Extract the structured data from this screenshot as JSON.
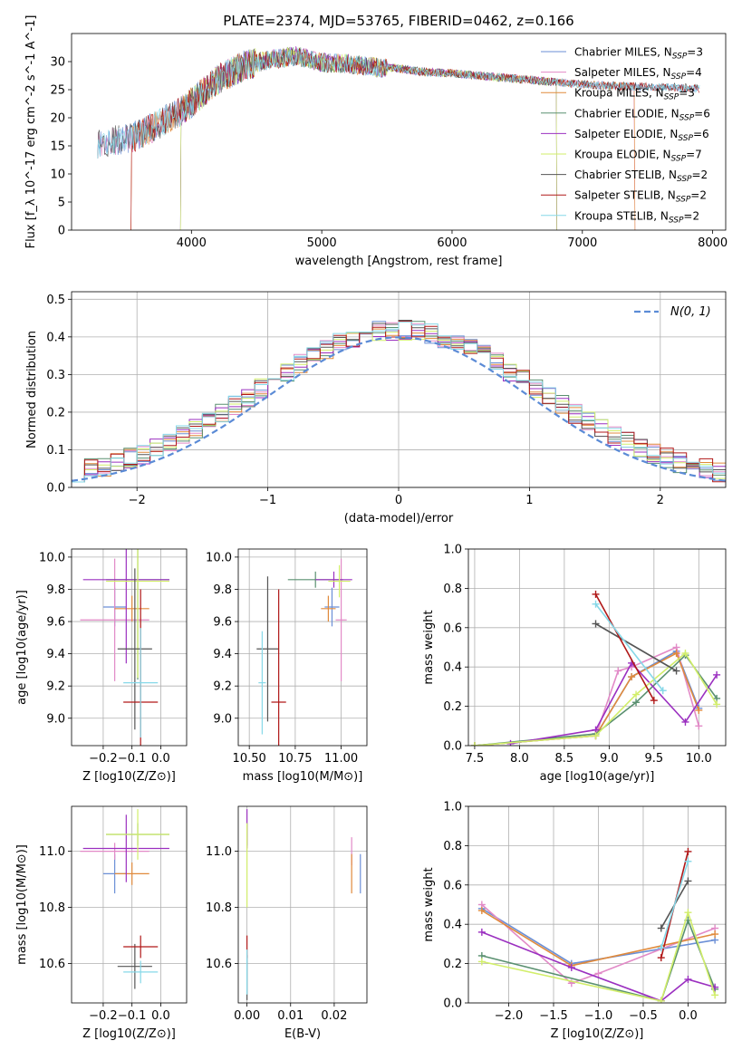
{
  "colors": {
    "chabrier_miles": "#6b8fd6",
    "salpeter_miles": "#e28ac7",
    "kroupa_miles": "#e08a3c",
    "chabrier_elodie": "#5a9070",
    "salpeter_elodie": "#9b30c0",
    "kroupa_elodie": "#d2ee6a",
    "chabrier_stelib": "#555555",
    "salpeter_stelib": "#b01818",
    "kroupa_stelib": "#86d8e8",
    "normal_curve": "#5b8bd6",
    "grid": "#b0b0b0"
  },
  "chart_data": [
    {
      "id": "spectrum",
      "type": "line",
      "title": "PLATE=2374, MJD=53765, FIBERID=0462, z=0.166",
      "xlabel": "wavelength [Angstrom, rest frame]",
      "ylabel": "Flux [f_λ 10^-17 erg cm^-2 s^-1 A^-1]",
      "xlim": [
        3080,
        8100
      ],
      "ylim": [
        0,
        35
      ],
      "xticks": [
        4000,
        5000,
        6000,
        7000,
        8000
      ],
      "yticks": [
        0,
        5,
        10,
        15,
        20,
        25,
        30
      ],
      "grid": false,
      "legend_position": "right",
      "legend": [
        {
          "label": "Chabrier MILES, N",
          "sub": "SSP",
          "eq": "=3",
          "color_key": "chabrier_miles"
        },
        {
          "label": "Salpeter MILES, N",
          "sub": "SSP",
          "eq": "=4",
          "color_key": "salpeter_miles"
        },
        {
          "label": "Kroupa MILES, N",
          "sub": "SSP",
          "eq": "=3",
          "color_key": "kroupa_miles"
        },
        {
          "label": "Chabrier ELODIE, N",
          "sub": "SSP",
          "eq": "=6",
          "color_key": "chabrier_elodie"
        },
        {
          "label": "Salpeter ELODIE, N",
          "sub": "SSP",
          "eq": "=6",
          "color_key": "salpeter_elodie"
        },
        {
          "label": "Kroupa ELODIE, N",
          "sub": "SSP",
          "eq": "=7",
          "color_key": "kroupa_elodie"
        },
        {
          "label": "Chabrier STELIB, N",
          "sub": "SSP",
          "eq": "=2",
          "color_key": "chabrier_stelib"
        },
        {
          "label": "Salpeter STELIB, N",
          "sub": "SSP",
          "eq": "=2",
          "color_key": "salpeter_stelib"
        },
        {
          "label": "Kroupa STELIB, N",
          "sub": "SSP",
          "eq": "=2",
          "color_key": "kroupa_stelib"
        }
      ],
      "spectrum_envelope": [
        [
          3280,
          15.8
        ],
        [
          3400,
          16.2
        ],
        [
          3550,
          16.8
        ],
        [
          3700,
          18.5
        ],
        [
          3850,
          20.5
        ],
        [
          3950,
          22.0
        ],
        [
          4050,
          24.0
        ],
        [
          4200,
          27.0
        ],
        [
          4400,
          29.5
        ],
        [
          4600,
          30.5
        ],
        [
          4800,
          31.2
        ],
        [
          5000,
          30.0
        ],
        [
          5200,
          29.8
        ],
        [
          5400,
          29.2
        ],
        [
          5600,
          28.8
        ],
        [
          5800,
          28.2
        ],
        [
          6000,
          28.0
        ],
        [
          6200,
          27.6
        ],
        [
          6400,
          27.2
        ],
        [
          6600,
          26.8
        ],
        [
          6800,
          26.4
        ],
        [
          7000,
          26.0
        ],
        [
          7200,
          25.8
        ],
        [
          7400,
          25.6
        ],
        [
          7600,
          25.6
        ],
        [
          7800,
          25.4
        ],
        [
          7900,
          25.2
        ]
      ],
      "model_starts": [
        {
          "color_key": "kroupa_miles",
          "x": 3540
        },
        {
          "color_key": "salpeter_stelib",
          "x": 3540
        },
        {
          "color_key": "kroupa_elodie",
          "x": 3920
        },
        {
          "color_key": "salpeter_elodie",
          "x": 3920
        },
        {
          "color_key": "chabrier_elodie",
          "x": 3920
        }
      ],
      "model_ends": [
        {
          "color_key": "kroupa_elodie",
          "x": 6800
        },
        {
          "color_key": "salpeter_elodie",
          "x": 6800
        },
        {
          "color_key": "chabrier_elodie",
          "x": 6800
        },
        {
          "color_key": "salpeter_miles",
          "x": 7400
        },
        {
          "color_key": "kroupa_miles",
          "x": 7400
        }
      ]
    },
    {
      "id": "residuals",
      "type": "histogram",
      "xlabel": "(data-model)/error",
      "ylabel": "Normed distribution",
      "xlim": [
        -2.5,
        2.5
      ],
      "ylim": [
        0,
        0.52
      ],
      "xticks": [
        -2,
        -1,
        0,
        1,
        2
      ],
      "yticks": [
        0.0,
        0.1,
        0.2,
        0.3,
        0.4,
        0.5
      ],
      "grid": true,
      "bin_width": 0.1,
      "legend_position": "top-right",
      "legend": [
        {
          "label": "N(0, 1)",
          "style": "dashed",
          "color_key": "normal_curve"
        }
      ],
      "normal": {
        "mean": 0,
        "sigma": 1
      }
    },
    {
      "id": "age_vs_Z",
      "type": "errorbar",
      "xlabel": "Z [log10(Z/Z⊙)]",
      "ylabel": "age  [log10(age/yr)]",
      "xlim": [
        -0.31,
        0.09
      ],
      "ylim": [
        8.83,
        10.05
      ],
      "xticks": [
        -0.2,
        -0.1,
        0.0
      ],
      "xtick_labels": [
        "−0.2",
        "−0.1",
        "0.0"
      ],
      "yticks": [
        9.0,
        9.2,
        9.4,
        9.6,
        9.8,
        10.0
      ],
      "grid": true,
      "points": [
        {
          "color_key": "chabrier_miles",
          "x": -0.16,
          "xerr": 0.04,
          "y": 9.69,
          "yerr": 0.12
        },
        {
          "color_key": "salpeter_miles",
          "x": -0.16,
          "xerr": 0.12,
          "y": 9.61,
          "yerr": 0.38
        },
        {
          "color_key": "kroupa_miles",
          "x": -0.1,
          "xerr": 0.06,
          "y": 9.68,
          "yerr": 0.08
        },
        {
          "color_key": "chabrier_elodie",
          "x": -0.08,
          "xerr": 0.11,
          "y": 9.86,
          "yerr": 0.62
        },
        {
          "color_key": "salpeter_elodie",
          "x": -0.12,
          "xerr": 0.15,
          "y": 9.86,
          "yerr": 0.52
        },
        {
          "color_key": "kroupa_elodie",
          "x": -0.08,
          "xerr": 0.11,
          "y": 9.85,
          "yerr": 0.6
        },
        {
          "color_key": "chabrier_stelib",
          "x": -0.09,
          "xerr": 0.06,
          "y": 9.43,
          "yerr": 0.5
        },
        {
          "color_key": "salpeter_stelib",
          "x": -0.07,
          "xerr": 0.06,
          "y": 9.1,
          "yerr": 0.7
        },
        {
          "color_key": "kroupa_stelib",
          "x": -0.07,
          "xerr": 0.06,
          "y": 9.22,
          "yerr": 0.34
        }
      ]
    },
    {
      "id": "age_vs_mass",
      "type": "errorbar",
      "xlabel": "mass [log10(M/M⊙)]",
      "xlim": [
        10.44,
        11.14
      ],
      "ylim": [
        8.83,
        10.05
      ],
      "xticks": [
        10.5,
        10.75,
        11.0
      ],
      "xtick_labels": [
        "10.50",
        "10.75",
        "11.00"
      ],
      "yticks": [
        9.0,
        9.2,
        9.4,
        9.6,
        9.8,
        10.0
      ],
      "grid": true,
      "points": [
        {
          "color_key": "chabrier_miles",
          "x": 10.95,
          "xerr": 0.04,
          "y": 9.69,
          "yerr": 0.12
        },
        {
          "color_key": "salpeter_miles",
          "x": 11.0,
          "xerr": 0.03,
          "y": 9.61,
          "yerr": 0.38
        },
        {
          "color_key": "kroupa_miles",
          "x": 10.93,
          "xerr": 0.04,
          "y": 9.68,
          "yerr": 0.08
        },
        {
          "color_key": "chabrier_elodie",
          "x": 10.86,
          "xerr": 0.15,
          "y": 9.86,
          "yerr": 0.05
        },
        {
          "color_key": "salpeter_elodie",
          "x": 10.96,
          "xerr": 0.1,
          "y": 9.86,
          "yerr": 0.05
        },
        {
          "color_key": "kroupa_elodie",
          "x": 10.99,
          "xerr": 0.06,
          "y": 9.85,
          "yerr": 0.1
        },
        {
          "color_key": "chabrier_stelib",
          "x": 10.6,
          "xerr": 0.06,
          "y": 9.43,
          "yerr": 0.45
        },
        {
          "color_key": "salpeter_stelib",
          "x": 10.66,
          "xerr": 0.04,
          "y": 9.1,
          "yerr": 0.7
        },
        {
          "color_key": "kroupa_stelib",
          "x": 10.57,
          "xerr": 0.02,
          "y": 9.22,
          "yerr": 0.32
        }
      ]
    },
    {
      "id": "age_weights",
      "type": "line",
      "xlabel": "age  [log10(age/yr)]",
      "ylabel": "mass weight",
      "xlim": [
        7.43,
        10.3
      ],
      "ylim": [
        0,
        1
      ],
      "xticks": [
        7.5,
        8.0,
        8.5,
        9.0,
        9.5,
        10.0
      ],
      "yticks": [
        0.0,
        0.2,
        0.4,
        0.6,
        0.8,
        1.0
      ],
      "grid": true,
      "series": [
        {
          "color_key": "chabrier_miles",
          "x": [
            7.5,
            8.85,
            9.25,
            9.75,
            10.0
          ],
          "y": [
            0,
            0.05,
            0.35,
            0.48,
            0.19
          ]
        },
        {
          "color_key": "salpeter_miles",
          "x": [
            7.5,
            8.85,
            9.1,
            9.25,
            9.75,
            10.0
          ],
          "y": [
            0,
            0.05,
            0.38,
            0.4,
            0.5,
            0.1
          ]
        },
        {
          "color_key": "kroupa_miles",
          "x": [
            7.5,
            8.85,
            9.25,
            9.75,
            10.0
          ],
          "y": [
            0,
            0.05,
            0.35,
            0.47,
            0.18
          ]
        },
        {
          "color_key": "chabrier_elodie",
          "x": [
            7.5,
            8.85,
            9.3,
            9.85,
            10.2
          ],
          "y": [
            0,
            0.06,
            0.22,
            0.46,
            0.24
          ]
        },
        {
          "color_key": "salpeter_elodie",
          "x": [
            7.9,
            8.85,
            9.25,
            9.85,
            10.2
          ],
          "y": [
            0.01,
            0.08,
            0.42,
            0.12,
            0.36
          ]
        },
        {
          "color_key": "kroupa_elodie",
          "x": [
            7.5,
            8.85,
            9.3,
            9.85,
            10.2
          ],
          "y": [
            0,
            0.05,
            0.26,
            0.47,
            0.21
          ]
        },
        {
          "color_key": "chabrier_stelib",
          "x": [
            8.85,
            9.75
          ],
          "y": [
            0.62,
            0.38
          ]
        },
        {
          "color_key": "salpeter_stelib",
          "x": [
            8.85,
            9.5
          ],
          "y": [
            0.77,
            0.23
          ]
        },
        {
          "color_key": "kroupa_stelib",
          "x": [
            8.85,
            9.6
          ],
          "y": [
            0.72,
            0.28
          ]
        }
      ]
    },
    {
      "id": "mass_vs_Z",
      "type": "errorbar",
      "xlabel": "Z [log10(Z/Z⊙)]",
      "ylabel": "mass [log10(M/M⊙)]",
      "xlim": [
        -0.31,
        0.09
      ],
      "ylim": [
        10.46,
        11.16
      ],
      "xticks": [
        -0.2,
        -0.1,
        0.0
      ],
      "xtick_labels": [
        "−0.2",
        "−0.1",
        "0.0"
      ],
      "yticks": [
        10.6,
        10.8,
        11.0
      ],
      "grid": true,
      "points": [
        {
          "color_key": "chabrier_miles",
          "x": -0.16,
          "xerr": 0.04,
          "y": 10.92,
          "yerr": 0.07
        },
        {
          "color_key": "salpeter_miles",
          "x": -0.16,
          "xerr": 0.12,
          "y": 11.0,
          "yerr": 0.03
        },
        {
          "color_key": "kroupa_miles",
          "x": -0.1,
          "xerr": 0.06,
          "y": 10.92,
          "yerr": 0.04
        },
        {
          "color_key": "chabrier_elodie",
          "x": -0.08,
          "xerr": 0.11,
          "y": 11.06,
          "yerr": 0.04
        },
        {
          "color_key": "salpeter_elodie",
          "x": -0.12,
          "xerr": 0.15,
          "y": 11.01,
          "yerr": 0.12
        },
        {
          "color_key": "kroupa_elodie",
          "x": -0.08,
          "xerr": 0.11,
          "y": 11.06,
          "yerr": 0.09
        },
        {
          "color_key": "chabrier_stelib",
          "x": -0.09,
          "xerr": 0.06,
          "y": 10.59,
          "yerr": 0.08
        },
        {
          "color_key": "salpeter_stelib",
          "x": -0.07,
          "xerr": 0.06,
          "y": 10.66,
          "yerr": 0.04
        },
        {
          "color_key": "kroupa_stelib",
          "x": -0.07,
          "xerr": 0.06,
          "y": 10.57,
          "yerr": 0.04
        }
      ]
    },
    {
      "id": "mass_vs_ebv",
      "type": "errorbar",
      "xlabel": "E(B-V)",
      "xlim": [
        -0.002,
        0.0275
      ],
      "ylim": [
        10.46,
        11.16
      ],
      "xticks": [
        0.0,
        0.01,
        0.02
      ],
      "xtick_labels": [
        "0.00",
        "0.01",
        "0.02"
      ],
      "yticks": [
        10.6,
        10.8,
        11.0
      ],
      "grid": true,
      "points": [
        {
          "color_key": "chabrier_miles",
          "x": 0.026,
          "xerr": 0,
          "y": 10.92,
          "yerr": 0.07
        },
        {
          "color_key": "salpeter_miles",
          "x": 0.024,
          "xerr": 0,
          "y": 11.0,
          "yerr": 0.05
        },
        {
          "color_key": "kroupa_miles",
          "x": 0.024,
          "xerr": 0,
          "y": 10.92,
          "yerr": 0.07
        },
        {
          "color_key": "chabrier_elodie",
          "x": 0.0,
          "xerr": 0,
          "y": 11.06,
          "yerr": 0.04
        },
        {
          "color_key": "salpeter_elodie",
          "x": 0.0,
          "xerr": 0,
          "y": 11.08,
          "yerr": 0.07
        },
        {
          "color_key": "kroupa_elodie",
          "x": 0.0,
          "xerr": 0,
          "y": 10.95,
          "yerr": 0.15
        },
        {
          "color_key": "chabrier_stelib",
          "x": 0.0,
          "xerr": 0,
          "y": 10.55,
          "yerr": 0.08
        },
        {
          "color_key": "salpeter_stelib",
          "x": 0.0,
          "xerr": 0,
          "y": 10.66,
          "yerr": 0.04
        },
        {
          "color_key": "kroupa_stelib",
          "x": 0.0,
          "xerr": 0,
          "y": 10.57,
          "yerr": 0.08
        }
      ]
    },
    {
      "id": "Z_weights",
      "type": "line",
      "xlabel": "Z [log10(Z/Z⊙)]",
      "ylabel": "mass weight",
      "xlim": [
        -2.45,
        0.42
      ],
      "ylim": [
        0,
        1
      ],
      "xticks": [
        -2.0,
        -1.5,
        -1.0,
        -0.5,
        0.0
      ],
      "xtick_labels": [
        "−2.0",
        "−1.5",
        "−1.0",
        "−0.5",
        "0.0"
      ],
      "yticks": [
        0.0,
        0.2,
        0.4,
        0.6,
        0.8,
        1.0
      ],
      "grid": true,
      "series": [
        {
          "color_key": "chabrier_miles",
          "x": [
            -2.3,
            -1.3,
            0.3
          ],
          "y": [
            0.48,
            0.2,
            0.32
          ]
        },
        {
          "color_key": "salpeter_miles",
          "x": [
            -2.3,
            -1.3,
            -1.0,
            0.3
          ],
          "y": [
            0.5,
            0.1,
            0.15,
            0.38
          ]
        },
        {
          "color_key": "kroupa_miles",
          "x": [
            -2.3,
            -1.3,
            0.3
          ],
          "y": [
            0.47,
            0.19,
            0.35
          ]
        },
        {
          "color_key": "chabrier_elodie",
          "x": [
            -2.3,
            -0.3,
            0.0,
            0.3
          ],
          "y": [
            0.24,
            0.01,
            0.42,
            0.07
          ]
        },
        {
          "color_key": "salpeter_elodie",
          "x": [
            -2.3,
            -1.3,
            -0.3,
            0.0,
            0.3
          ],
          "y": [
            0.36,
            0.18,
            0.01,
            0.12,
            0.08
          ]
        },
        {
          "color_key": "kroupa_elodie",
          "x": [
            -2.3,
            -0.3,
            0.0,
            0.3
          ],
          "y": [
            0.21,
            0.01,
            0.46,
            0.04
          ]
        },
        {
          "color_key": "chabrier_stelib",
          "x": [
            -0.3,
            0.0
          ],
          "y": [
            0.38,
            0.62
          ]
        },
        {
          "color_key": "salpeter_stelib",
          "x": [
            -0.3,
            0.0
          ],
          "y": [
            0.23,
            0.77
          ]
        },
        {
          "color_key": "kroupa_stelib",
          "x": [
            -0.3,
            0.0
          ],
          "y": [
            0.28,
            0.72
          ]
        }
      ]
    }
  ]
}
